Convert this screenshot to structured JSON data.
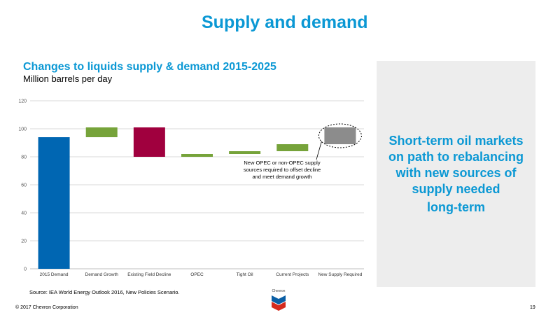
{
  "slide": {
    "title": "Supply and demand",
    "panel_lines": [
      "Short-term oil markets",
      "on path to rebalancing",
      "with new sources of",
      "supply needed",
      "long-term"
    ],
    "source": "Source:  IEA World Energy Outlook 2016, New Policies Scenario.",
    "copyright": "© 2017 Chevron Corporation",
    "page_number": "19",
    "logo_text": "Chevron"
  },
  "chart_data": {
    "type": "bar",
    "title": "Changes to liquids supply & demand 2015-2025",
    "subtitle": "Million barrels per day",
    "ylim": [
      0,
      120
    ],
    "yticks": [
      "0",
      "20",
      "40",
      "60",
      "80",
      "100",
      "120"
    ],
    "grid": true,
    "categories": [
      "2015 Demand",
      "Demand Growth",
      "Existing Field Decline",
      "OPEC",
      "Tight Oil",
      "Current Projects",
      "New Supply Required"
    ],
    "bars": [
      {
        "category": "2015 Demand",
        "low": 0,
        "high": 94,
        "color": "#0066b2"
      },
      {
        "category": "Demand Growth",
        "low": 94,
        "high": 101,
        "color": "#76a33a"
      },
      {
        "category": "Existing Field Decline",
        "low": 80,
        "high": 101,
        "color": "#a0003e"
      },
      {
        "category": "OPEC",
        "low": 80,
        "high": 82,
        "color": "#76a33a"
      },
      {
        "category": "Tight Oil",
        "low": 82,
        "high": 84,
        "color": "#76a33a"
      },
      {
        "category": "Current Projects",
        "low": 84,
        "high": 89,
        "color": "#76a33a"
      },
      {
        "category": "New Supply Required",
        "low": 89,
        "high": 101,
        "color": "#8c8c8c"
      }
    ],
    "annotation_lines": [
      "New OPEC or non-OPEC supply",
      "sources required to offset decline",
      "and meet demand growth"
    ],
    "highlighted_category": "New Supply Required"
  }
}
